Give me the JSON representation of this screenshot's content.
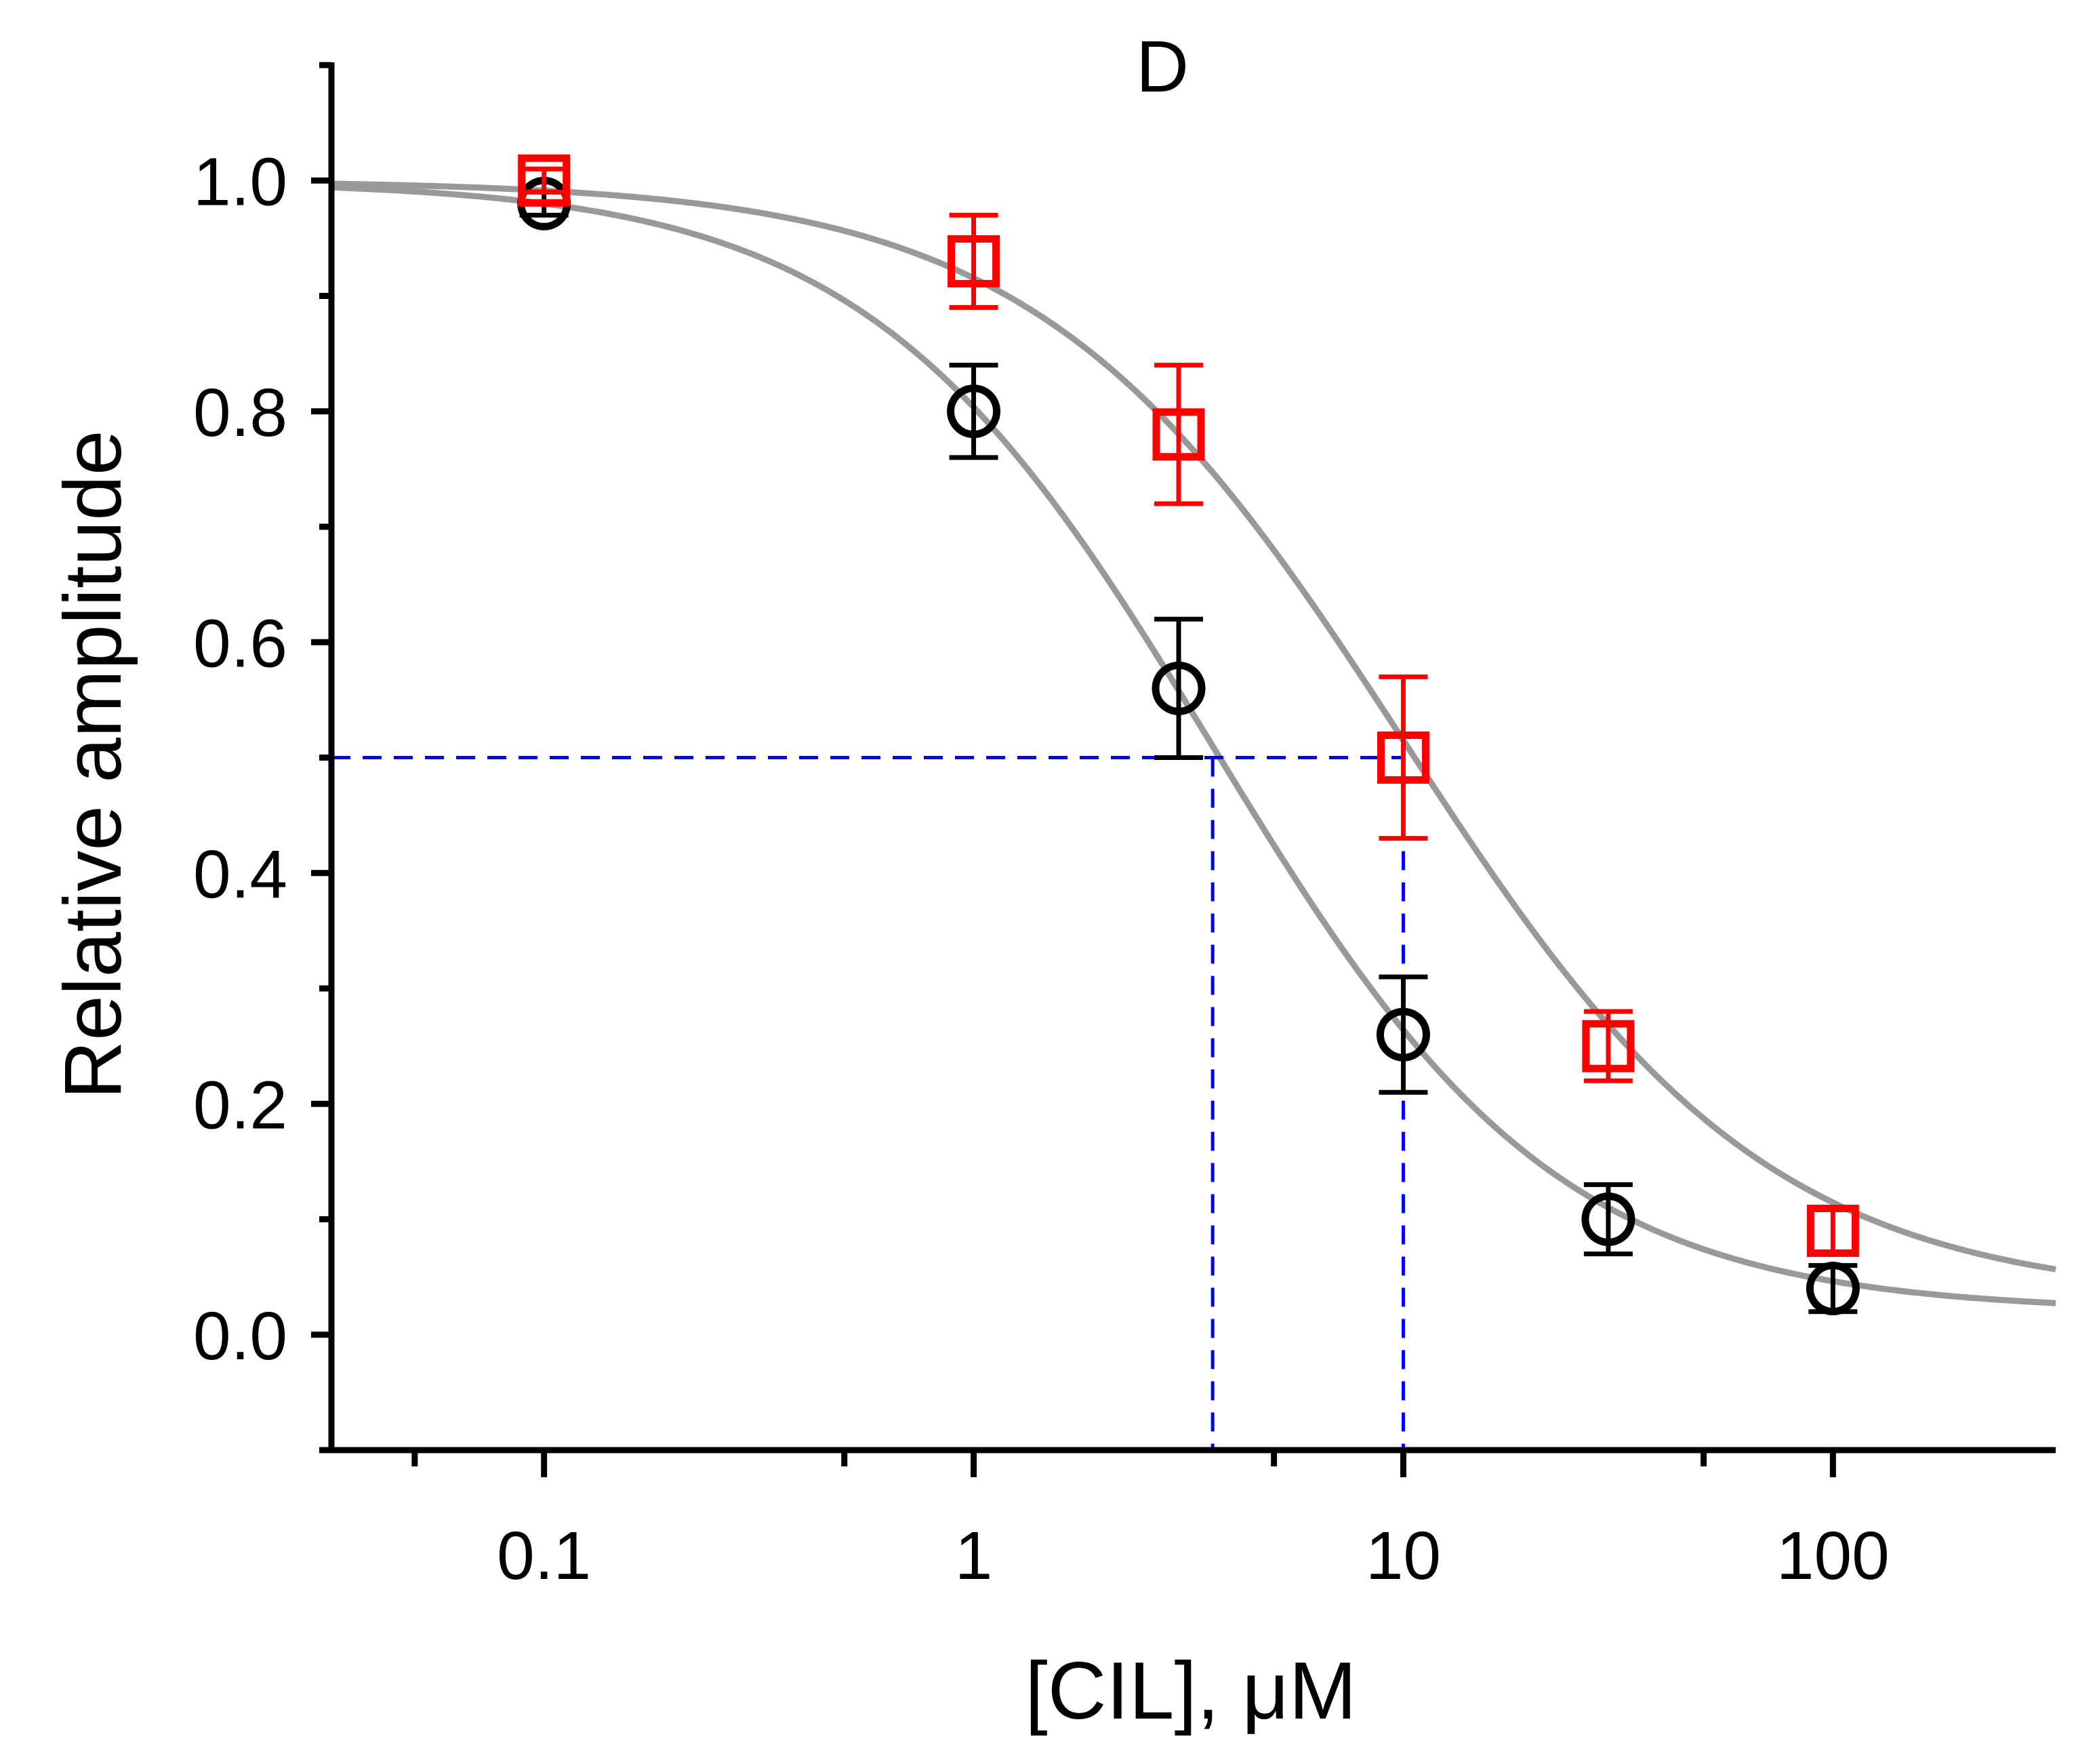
{
  "chart_data": {
    "type": "scatter",
    "title": "D",
    "xlabel": "[CIL], μM",
    "ylabel": "Relative amplitude",
    "xscale": "log",
    "xlim": [
      0.032,
      330
    ],
    "ylim": [
      -0.1,
      1.1
    ],
    "x_ticks": [
      {
        "value": 0.1,
        "label": "0.1"
      },
      {
        "value": 1,
        "label": "1"
      },
      {
        "value": 10,
        "label": "10"
      },
      {
        "value": 100,
        "label": "100"
      }
    ],
    "x_minor_ticks": [
      0.05,
      0.5,
      5,
      50
    ],
    "y_ticks": [
      {
        "value": 0.0,
        "label": "0.0"
      },
      {
        "value": 0.2,
        "label": "0.2"
      },
      {
        "value": 0.4,
        "label": "0.4"
      },
      {
        "value": 0.6,
        "label": "0.6"
      },
      {
        "value": 0.8,
        "label": "0.8"
      },
      {
        "value": 1.0,
        "label": "1.0"
      }
    ],
    "y_minor_ticks": [
      -0.1,
      0.1,
      0.3,
      0.5,
      0.7,
      0.9,
      1.1
    ],
    "series": [
      {
        "name": "circles",
        "marker": "circle",
        "color": "#000000",
        "points": [
          {
            "x": 0.1,
            "y": 0.98,
            "err": 0.01
          },
          {
            "x": 1,
            "y": 0.8,
            "err": 0.04
          },
          {
            "x": 3,
            "y": 0.56,
            "err": 0.06
          },
          {
            "x": 10,
            "y": 0.26,
            "err": 0.05
          },
          {
            "x": 30,
            "y": 0.1,
            "err": 0.03
          },
          {
            "x": 100,
            "y": 0.04,
            "err": 0.02
          }
        ],
        "fit": {
          "ic50": 3.6,
          "hill": 1.08,
          "bottom": 0.02,
          "top": 1.0,
          "color": "#999999"
        }
      },
      {
        "name": "squares",
        "marker": "square",
        "color": "#ff0000",
        "points": [
          {
            "x": 0.1,
            "y": 1.0,
            "err": 0.01
          },
          {
            "x": 1,
            "y": 0.93,
            "err": 0.04
          },
          {
            "x": 3,
            "y": 0.78,
            "err": 0.06
          },
          {
            "x": 10,
            "y": 0.5,
            "err": 0.07
          },
          {
            "x": 30,
            "y": 0.25,
            "err": 0.03
          },
          {
            "x": 100,
            "y": 0.09,
            "err": 0.02
          }
        ],
        "fit": {
          "ic50": 10.0,
          "hill": 1.02,
          "bottom": 0.03,
          "top": 1.0,
          "color": "#999999"
        }
      }
    ],
    "reference_lines": {
      "color": "#0000ff",
      "style": "dashed",
      "y_level": 0.5,
      "x_values": [
        3.6,
        10.0
      ]
    }
  }
}
